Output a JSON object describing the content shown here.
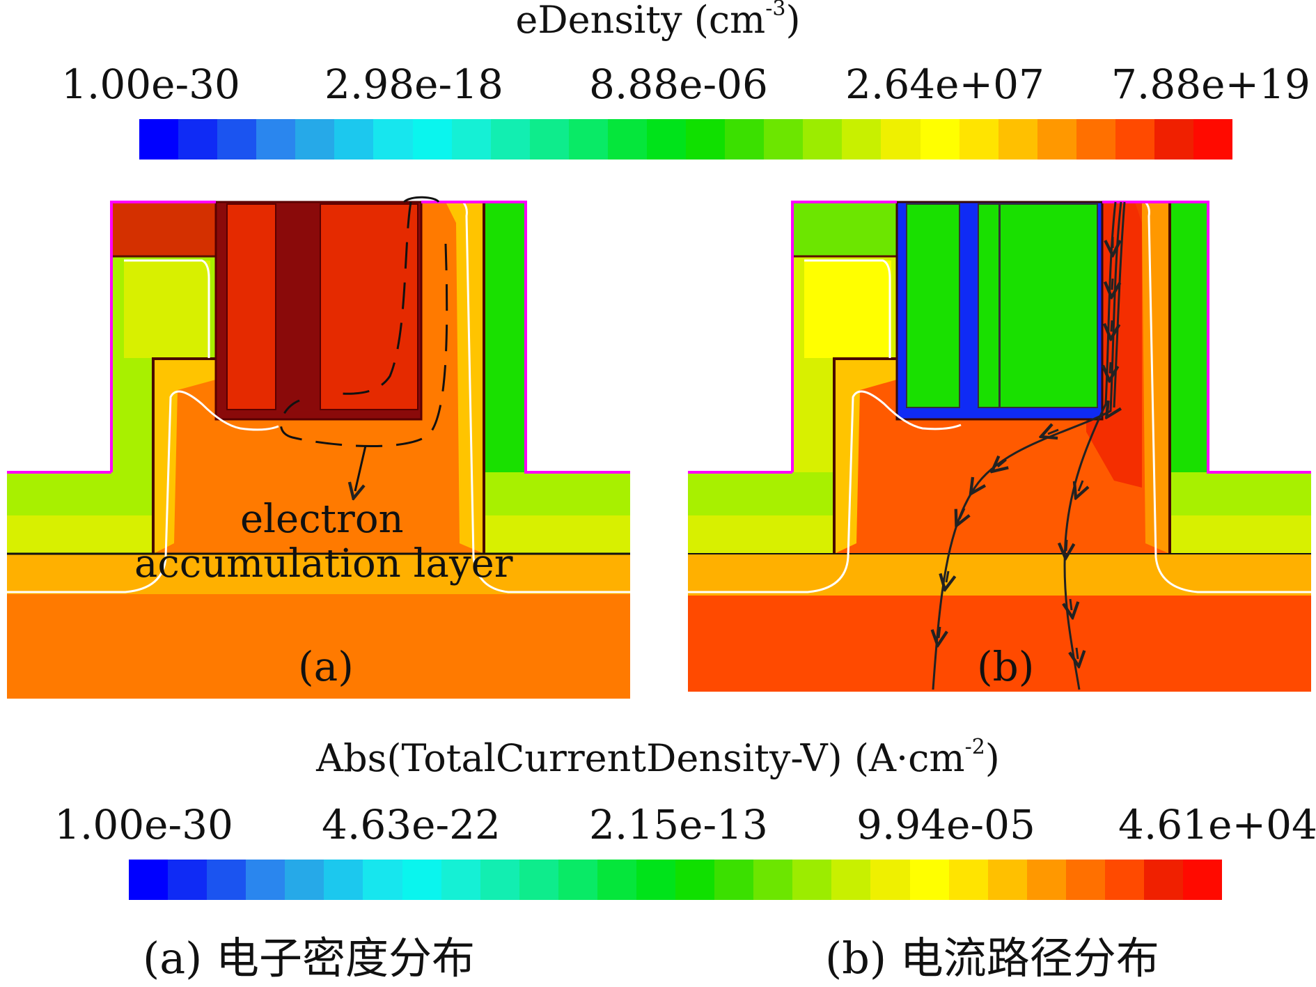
{
  "top_scale": {
    "title_main": "eDensity (cm",
    "title_sup": "-3",
    "title_end": ")",
    "ticks": [
      "1.00e-30",
      "2.98e-18",
      "8.88e-06",
      "2.64e+07",
      "7.88e+19"
    ]
  },
  "bottom_scale": {
    "title_main": "Abs(TotalCurrentDensity-V) (A·cm",
    "title_sup": "-2",
    "title_end": ")",
    "ticks": [
      "1.00e-30",
      "4.63e-22",
      "2.15e-13",
      "9.94e-05",
      "4.61e+04"
    ]
  },
  "colormap": [
    "#0000ff",
    "#0f2bf5",
    "#1b54f0",
    "#2a86ee",
    "#26a9e8",
    "#1cc8ee",
    "#17e6ee",
    "#0af5ee",
    "#15f0d5",
    "#12eeb1",
    "#0eec8c",
    "#09ea66",
    "#05e63b",
    "#00e31a",
    "#10e000",
    "#3be000",
    "#6ce600",
    "#9cec00",
    "#c8f000",
    "#eff000",
    "#ffff00",
    "#ffe400",
    "#ffc000",
    "#ff9800",
    "#ff7000",
    "#ff4a00",
    "#f02000",
    "#ff0a00"
  ],
  "panel_a": {
    "label": "(a)",
    "annotation_line1": "electron",
    "annotation_line2": "accumulation layer"
  },
  "panel_b": {
    "label": "(b)"
  },
  "captions": {
    "a": "(a) 电子密度分布",
    "b": "(b) 电流路径分布"
  }
}
